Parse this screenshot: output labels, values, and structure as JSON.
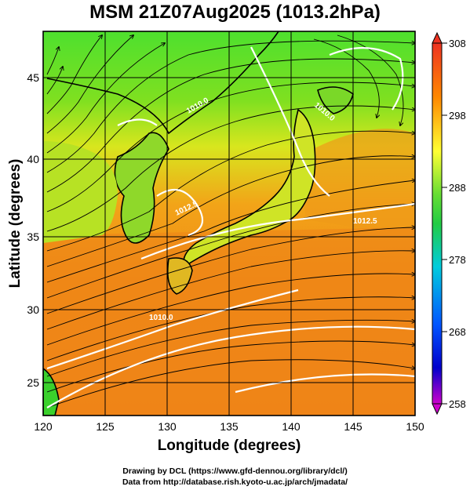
{
  "title": "MSM 21Z07Aug2025 (1013.2hPa)",
  "xlabel": "Longitude (degrees)",
  "ylabel": "Latitude  (degrees)",
  "x_ticks": [
    "120",
    "125",
    "130",
    "135",
    "140",
    "145",
    "150"
  ],
  "y_ticks": [
    "25",
    "30",
    "35",
    "40",
    "45"
  ],
  "colorbar": {
    "ticks": [
      "258",
      "268",
      "278",
      "288",
      "298",
      "308"
    ],
    "min": 258,
    "max": 308
  },
  "contour_labels": [
    "1010.0",
    "1010.0",
    "1012.5",
    "1012.5",
    "1010.0"
  ],
  "credits": {
    "line1": "Drawing by DCL (https://www.gfd-dennou.org/library/dcl/)",
    "line2": "Data from http://database.rish.kyoto-u.ac.jp/arch/jmadata/"
  },
  "chart_data": {
    "type": "heatmap",
    "title": "MSM 21Z07Aug2025 (1013.2hPa)",
    "xlabel": "Longitude (degrees)",
    "ylabel": "Latitude  (degrees)",
    "xlim": [
      120,
      150
    ],
    "ylim": [
      22.4,
      47.6
    ],
    "x_ticks": [
      120,
      125,
      130,
      135,
      140,
      145,
      150
    ],
    "y_ticks": [
      25,
      30,
      35,
      40,
      45
    ],
    "colorbar_range": [
      258,
      308
    ],
    "grid": true,
    "colors": {
      "low": "#cc00cc",
      "cold": "#0000ff",
      "cool": "#00ccff",
      "mid": "#33cc33",
      "warm": "#ffff33",
      "hot": "#ff8800",
      "high": "#ee3322"
    }
  }
}
